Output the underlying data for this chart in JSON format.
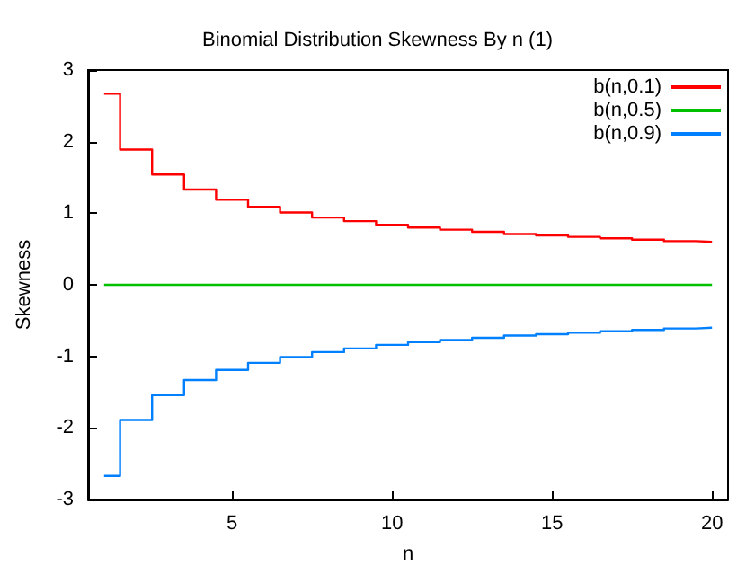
{
  "chart_data": {
    "type": "step",
    "title": "Binomial Distribution Skewness By n (1)",
    "xlabel": "n",
    "ylabel": "Skewness",
    "x": [
      1,
      2,
      3,
      4,
      5,
      6,
      7,
      8,
      9,
      10,
      11,
      12,
      13,
      14,
      15,
      16,
      17,
      18,
      19,
      20
    ],
    "series": [
      {
        "name": "b(n,0.1)",
        "color": "#ff0000",
        "values": [
          2.67,
          1.89,
          1.54,
          1.33,
          1.19,
          1.09,
          1.01,
          0.94,
          0.89,
          0.84,
          0.8,
          0.77,
          0.74,
          0.71,
          0.69,
          0.67,
          0.65,
          0.63,
          0.61,
          0.6
        ]
      },
      {
        "name": "b(n,0.5)",
        "color": "#00c000",
        "values": [
          0,
          0,
          0,
          0,
          0,
          0,
          0,
          0,
          0,
          0,
          0,
          0,
          0,
          0,
          0,
          0,
          0,
          0,
          0,
          0
        ]
      },
      {
        "name": "b(n,0.9)",
        "color": "#0080ff",
        "values": [
          -2.67,
          -1.89,
          -1.54,
          -1.33,
          -1.19,
          -1.09,
          -1.01,
          -0.94,
          -0.89,
          -0.84,
          -0.8,
          -0.77,
          -0.74,
          -0.71,
          -0.69,
          -0.67,
          -0.65,
          -0.63,
          -0.61,
          -0.6
        ]
      }
    ],
    "xlim": [
      0.5,
      20.5
    ],
    "xticks": [
      5,
      10,
      15,
      20
    ],
    "ylim": [
      -3,
      3
    ],
    "yticks": [
      -3,
      -2,
      -1,
      0,
      1,
      2,
      3
    ],
    "legend": "top right",
    "grid": false
  }
}
